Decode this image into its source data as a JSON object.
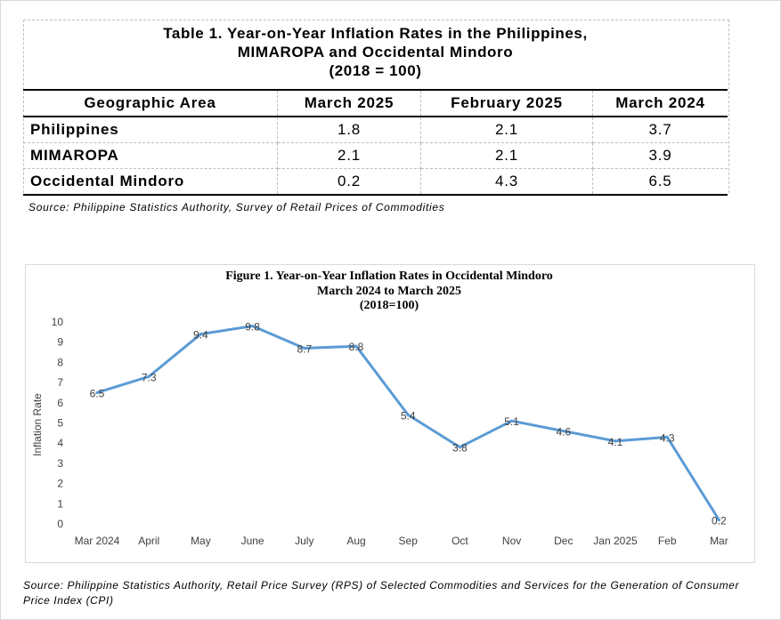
{
  "table": {
    "title_line1": "Table 1. Year-on-Year Inflation Rates in the Philippines,",
    "title_line2": "MIMAROPA and Occidental Mindoro",
    "title_line3": "(2018 = 100)",
    "headers": [
      "Geographic Area",
      "March 2025",
      "February 2025",
      "March 2024"
    ],
    "rows": [
      {
        "area": "Philippines",
        "mar2025": "1.8",
        "feb2025": "2.1",
        "mar2024": "3.7"
      },
      {
        "area": "MIMAROPA",
        "mar2025": "2.1",
        "feb2025": "2.1",
        "mar2024": "3.9"
      },
      {
        "area": "Occidental Mindoro",
        "mar2025": "0.2",
        "feb2025": "4.3",
        "mar2024": "6.5"
      }
    ],
    "source": "Source: Philippine Statistics Authority, Survey of Retail Prices of Commodities"
  },
  "chart_data": {
    "type": "line",
    "title_line1": "Figure 1. Year-on-Year Inflation Rates in Occidental Mindoro",
    "title_line2": "March 2024 to March 2025",
    "title_line3": "(2018=100)",
    "xlabel": "",
    "ylabel": "Inflation Rate",
    "ylim": [
      0,
      10
    ],
    "yticks": [
      0,
      1,
      2,
      3,
      4,
      5,
      6,
      7,
      8,
      9,
      10
    ],
    "categories": [
      "Mar 2024",
      "April",
      "May",
      "June",
      "July",
      "Aug",
      "Sep",
      "Oct",
      "Nov",
      "Dec",
      "Jan 2025",
      "Feb",
      "Mar"
    ],
    "values": [
      6.5,
      7.3,
      9.4,
      9.8,
      8.7,
      8.8,
      5.4,
      3.8,
      5.1,
      4.6,
      4.1,
      4.3,
      0.2
    ],
    "data_labels": [
      "6.5",
      "7.3",
      "9.4",
      "9.8",
      "8.7",
      "8.8",
      "5.4",
      "3.8",
      "5.1",
      "4.6",
      "4.1",
      "4.3",
      "0.2"
    ],
    "line_color": "#5b9bd5",
    "grid": false,
    "legend": "none"
  },
  "chart_source": "Source: Philippine Statistics Authority, Retail Price Survey (RPS) of Selected Commodities and Services for the Generation of Consumer Price Index (CPI)"
}
